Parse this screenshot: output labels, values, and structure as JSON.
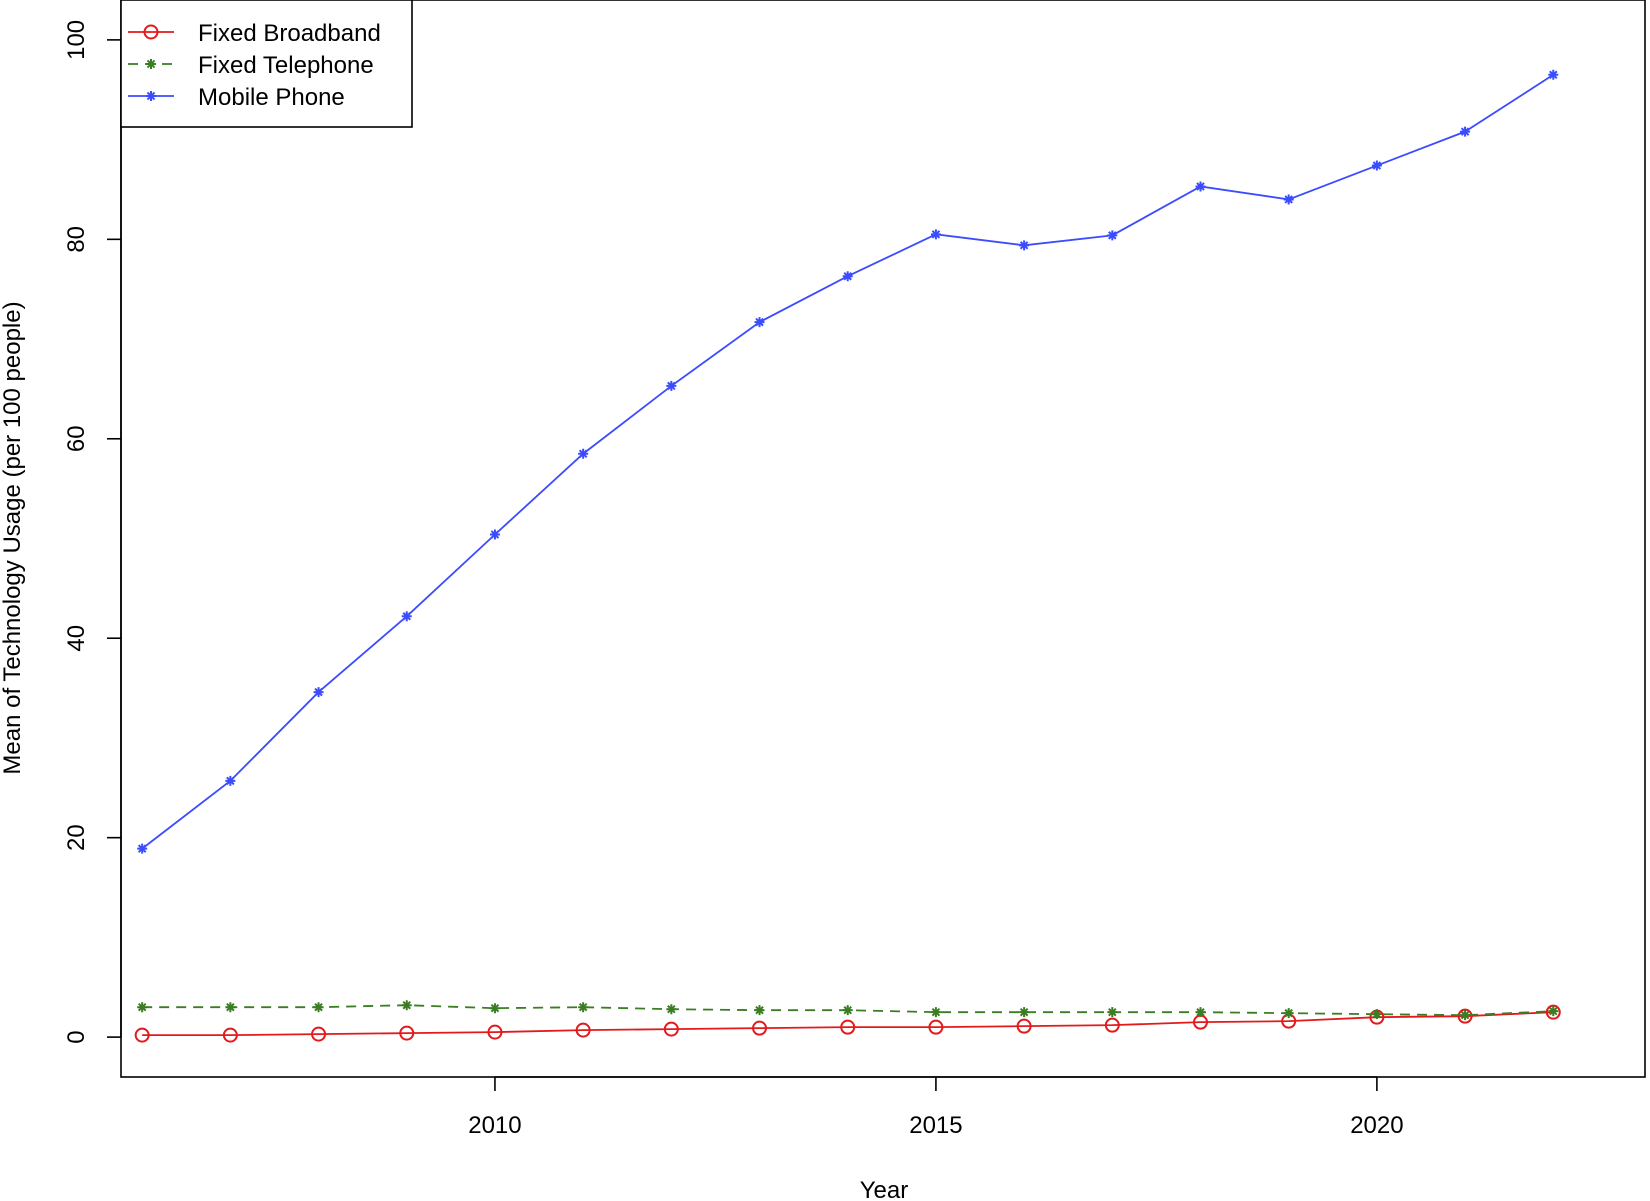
{
  "chart_data": {
    "type": "line",
    "title": "",
    "xlabel": "Year",
    "ylabel": "Mean of Technology Usage (per 100 people)",
    "xlim": [
      2005.76,
      2023.04
    ],
    "ylim": [
      -4,
      104
    ],
    "x_ticks": [
      2010,
      2015,
      2020
    ],
    "y_ticks": [
      0,
      20,
      40,
      60,
      80,
      100
    ],
    "grid": false,
    "legend_position": "top-left",
    "x": [
      2006,
      2007,
      2008,
      2009,
      2010,
      2011,
      2012,
      2013,
      2014,
      2015,
      2016,
      2017,
      2018,
      2019,
      2020,
      2021,
      2022
    ],
    "series": [
      {
        "name": "Fixed Broadband",
        "color": "#e31a1c",
        "line": "solid",
        "marker": "circle",
        "values": [
          0.2,
          0.2,
          0.3,
          0.4,
          0.5,
          0.7,
          0.8,
          0.9,
          1.0,
          1.0,
          1.1,
          1.2,
          1.5,
          1.6,
          2.0,
          2.1,
          2.5
        ]
      },
      {
        "name": "Fixed Telephone",
        "color": "#3a7d22",
        "line": "dashed",
        "marker": "star",
        "values": [
          3.0,
          3.0,
          3.0,
          3.2,
          2.9,
          3.0,
          2.8,
          2.7,
          2.7,
          2.5,
          2.5,
          2.5,
          2.5,
          2.4,
          2.3,
          2.2,
          2.6
        ]
      },
      {
        "name": "Mobile Phone",
        "color": "#3b4cff",
        "line": "solid",
        "marker": "star",
        "values": [
          18.9,
          25.7,
          34.6,
          42.2,
          50.4,
          58.5,
          65.3,
          71.7,
          76.3,
          80.5,
          79.4,
          80.4,
          85.3,
          84.0,
          87.4,
          90.8,
          96.5
        ]
      }
    ]
  }
}
